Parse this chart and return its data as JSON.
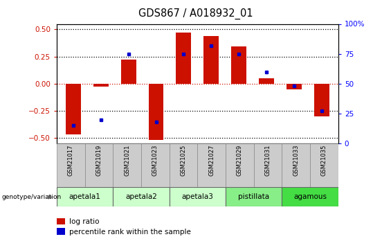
{
  "title": "GDS867 / A018932_01",
  "samples": [
    "GSM21017",
    "GSM21019",
    "GSM21021",
    "GSM21023",
    "GSM21025",
    "GSM21027",
    "GSM21029",
    "GSM21031",
    "GSM21033",
    "GSM21035"
  ],
  "log_ratio": [
    -0.47,
    -0.03,
    0.22,
    -0.52,
    0.47,
    0.44,
    0.34,
    0.05,
    -0.05,
    -0.3
  ],
  "percentile_rank": [
    15,
    20,
    75,
    18,
    75,
    82,
    75,
    60,
    48,
    27
  ],
  "groups": [
    {
      "name": "apetala1",
      "samples": [
        0,
        1
      ],
      "color": "#ccffcc"
    },
    {
      "name": "apetala2",
      "samples": [
        2,
        3
      ],
      "color": "#ccffcc"
    },
    {
      "name": "apetala3",
      "samples": [
        4,
        5
      ],
      "color": "#ccffcc"
    },
    {
      "name": "pistillata",
      "samples": [
        6,
        7
      ],
      "color": "#88ee88"
    },
    {
      "name": "agamous",
      "samples": [
        8,
        9
      ],
      "color": "#44dd44"
    }
  ],
  "bar_color": "#cc1100",
  "point_color": "#0000cc",
  "ylim_left": [
    -0.55,
    0.55
  ],
  "ylim_right": [
    -10,
    110
  ],
  "y_ticks_left": [
    -0.5,
    -0.25,
    0.0,
    0.25,
    0.5
  ],
  "y_ticks_right_vals": [
    0,
    25,
    50,
    75,
    100
  ],
  "y_ticks_right_pos": [
    0,
    25,
    50,
    75,
    100
  ],
  "background_color": "#ffffff",
  "sample_box_color": "#cccccc",
  "bar_width": 0.55,
  "title_fontsize": 10.5
}
